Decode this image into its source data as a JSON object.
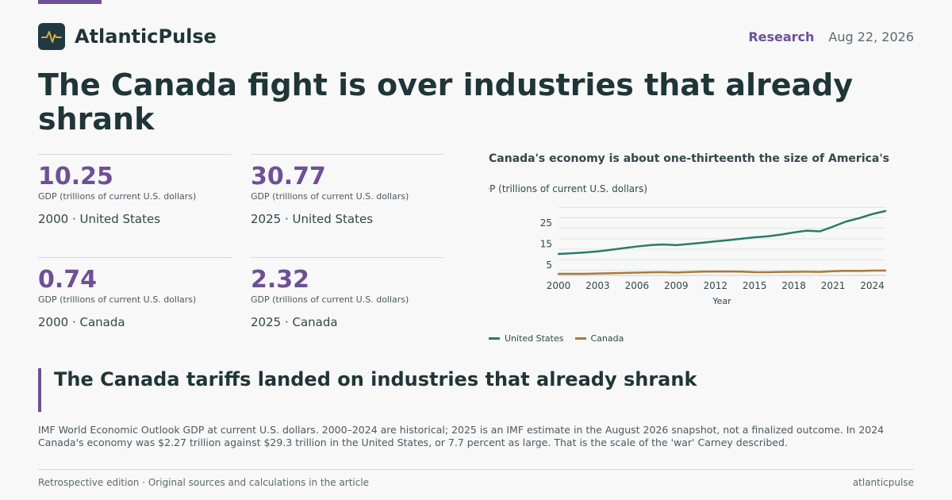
{
  "brand": {
    "name": "AtlanticPulse",
    "logo_icon": "pulse-icon"
  },
  "meta": {
    "section": "Research",
    "date": "Aug 22, 2026"
  },
  "headline": "The Canada fight is over industries that already shrank",
  "stats": [
    {
      "value": "10.25",
      "unit": "GDP (trillions of current U.S. dollars)",
      "label": "2000 · United States"
    },
    {
      "value": "30.77",
      "unit": "GDP (trillions of current U.S. dollars)",
      "label": "2025 · United States"
    },
    {
      "value": "0.74",
      "unit": "GDP (trillions of current U.S. dollars)",
      "label": "2000 · Canada"
    },
    {
      "value": "2.32",
      "unit": "GDP (trillions of current U.S. dollars)",
      "label": "2025 · Canada"
    }
  ],
  "chart_data": {
    "type": "line",
    "title": "Canada's economy is about one-thirteenth the size of America's",
    "ylabel": "GDP (trillions of current U.S. dollars)",
    "xlabel": "Year",
    "x": [
      2000,
      2001,
      2002,
      2003,
      2004,
      2005,
      2006,
      2007,
      2008,
      2009,
      2010,
      2011,
      2012,
      2013,
      2014,
      2015,
      2016,
      2017,
      2018,
      2019,
      2020,
      2021,
      2022,
      2023,
      2024,
      2025
    ],
    "x_ticks": [
      2000,
      2003,
      2006,
      2009,
      2012,
      2015,
      2018,
      2021,
      2024
    ],
    "y_ticks": [
      5,
      15,
      25
    ],
    "xlim": [
      2000,
      2025
    ],
    "ylim": [
      0,
      33
    ],
    "grid": true,
    "legend_position": "bottom-left",
    "series": [
      {
        "name": "United States",
        "color": "#2a7a6e",
        "values": [
          10.25,
          10.58,
          10.94,
          11.46,
          12.22,
          13.04,
          13.82,
          14.47,
          14.77,
          14.48,
          15.05,
          15.6,
          16.25,
          16.84,
          17.55,
          18.21,
          18.7,
          19.48,
          20.53,
          21.38,
          21.06,
          23.32,
          25.74,
          27.36,
          29.3,
          30.77
        ]
      },
      {
        "name": "Canada",
        "color": "#a87a3a",
        "values": [
          0.74,
          0.74,
          0.76,
          0.9,
          1.03,
          1.17,
          1.32,
          1.47,
          1.55,
          1.37,
          1.62,
          1.79,
          1.83,
          1.85,
          1.81,
          1.56,
          1.53,
          1.65,
          1.73,
          1.74,
          1.65,
          2.0,
          2.16,
          2.14,
          2.27,
          2.32
        ]
      }
    ]
  },
  "subhead": "The Canada tariffs landed on industries that already shrank",
  "body": "IMF World Economic Outlook GDP at current U.S. dollars. 2000–2024 are historical; 2025 is an IMF estimate in the August 2026 snapshot, not a finalized outcome. In 2024 Canada's economy was $2.27 trillion against $29.3 trillion in the United States, or 7.7 percent as large. That is the scale of the 'war' Carney described.",
  "footer": {
    "left": "Retrospective edition · Original sources and calculations in the article",
    "right": "atlanticpulse"
  }
}
